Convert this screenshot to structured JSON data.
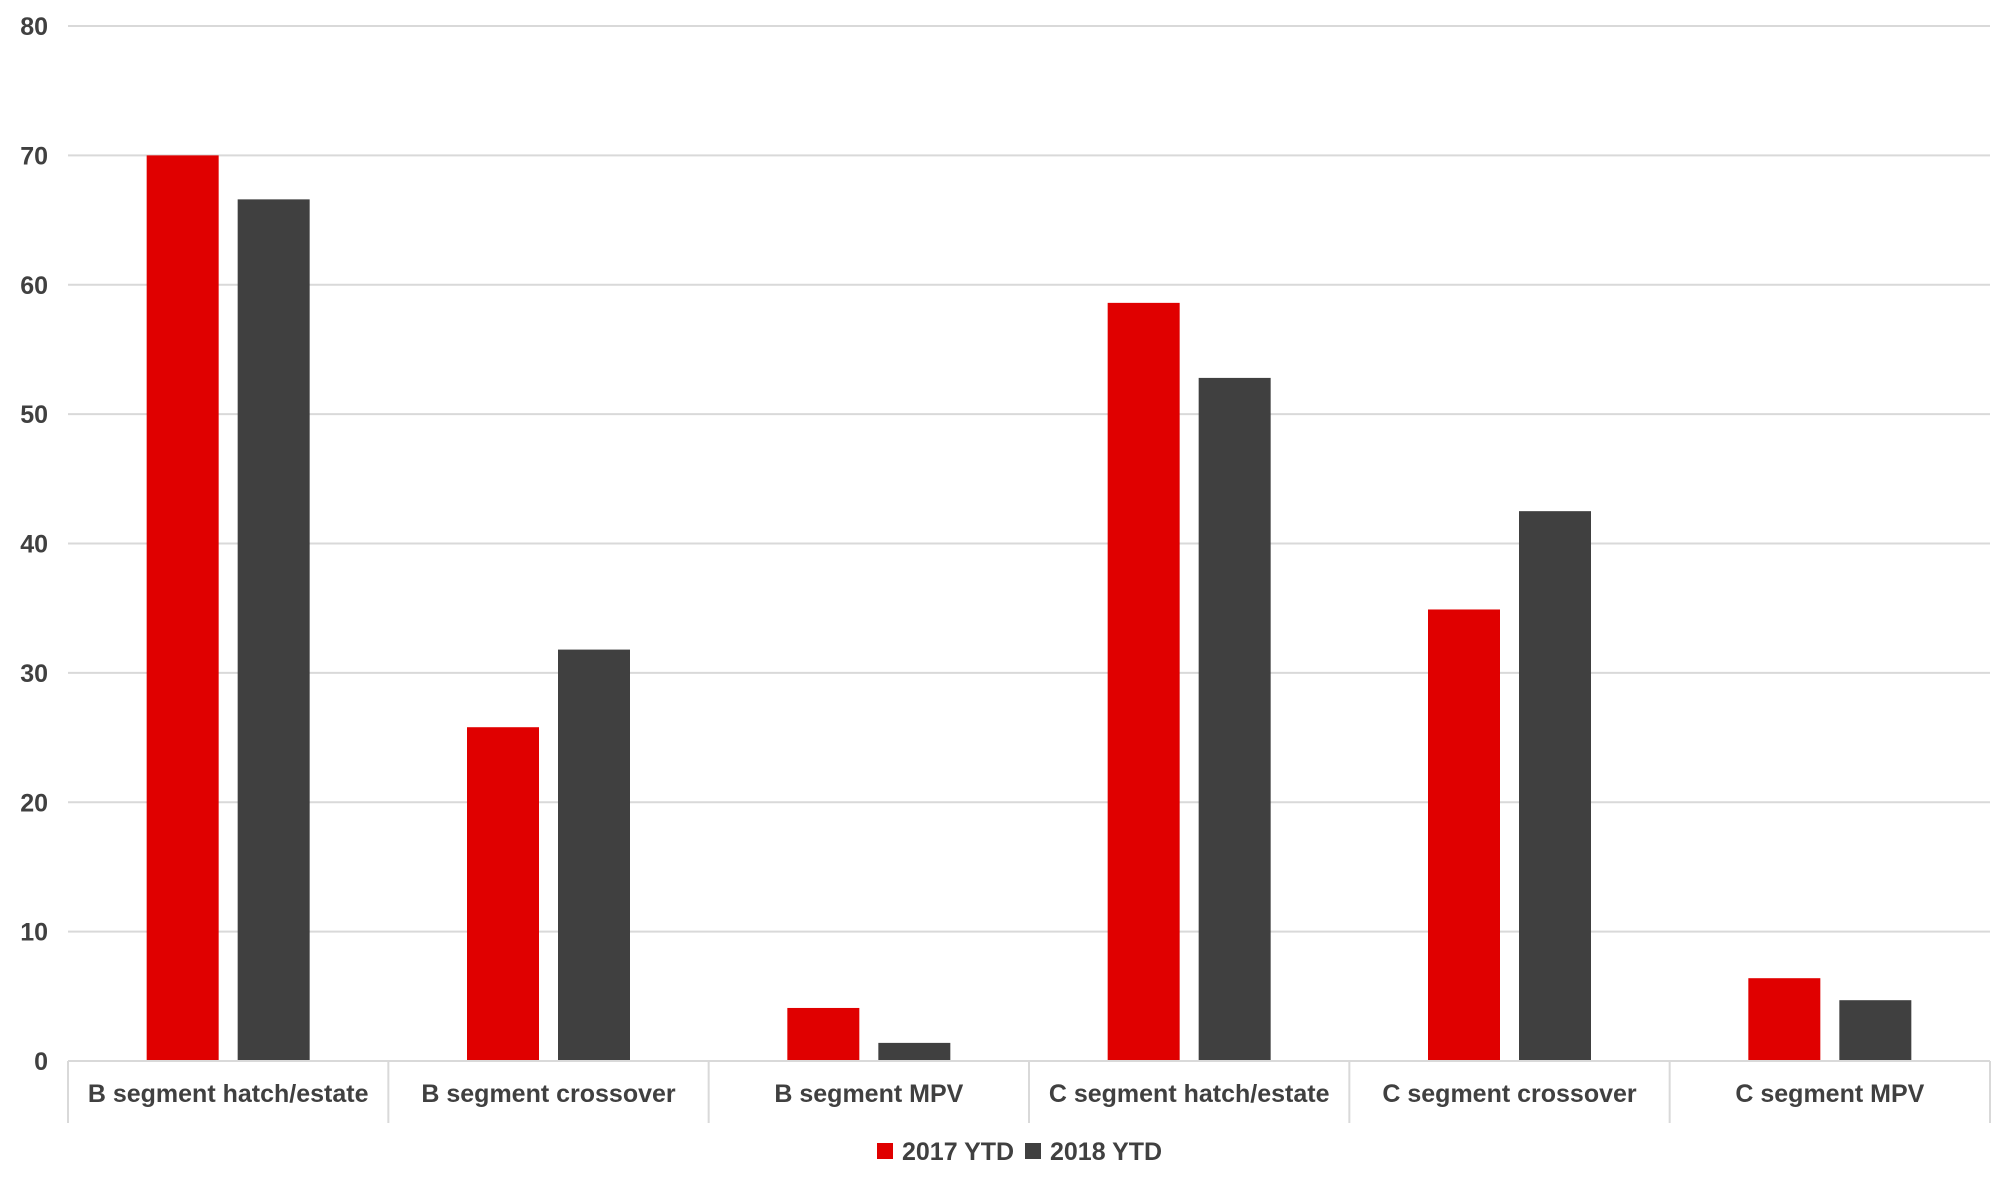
{
  "chart_data": {
    "type": "bar",
    "categories": [
      "B segment hatch/estate",
      "B segment crossover",
      "B segment MPV",
      "C segment hatch/estate",
      "C segment crossover",
      "C segment MPV"
    ],
    "series": [
      {
        "name": "2017 YTD",
        "color": "#e00000",
        "values": [
          70.0,
          25.8,
          4.1,
          58.6,
          34.9,
          6.4
        ]
      },
      {
        "name": "2018 YTD",
        "color": "#404040",
        "values": [
          66.6,
          31.8,
          1.4,
          52.8,
          42.5,
          4.7
        ]
      }
    ],
    "title": "",
    "xlabel": "",
    "ylabel": "",
    "ylim": [
      0,
      80
    ],
    "yticks": [
      0,
      10,
      20,
      30,
      40,
      50,
      60,
      70,
      80
    ],
    "grid": true,
    "legend_position": "bottom"
  }
}
